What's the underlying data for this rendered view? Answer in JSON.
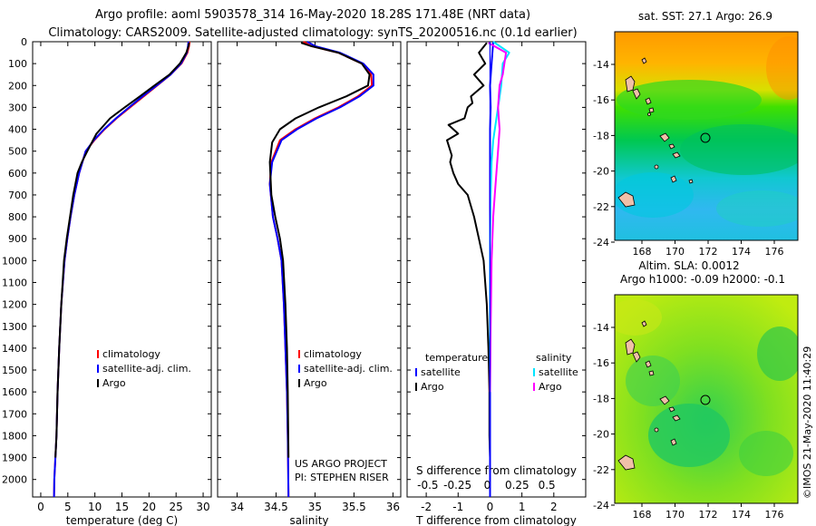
{
  "header": {
    "line1": "Argo profile: aoml 5903578_314 16-May-2020 18.28S 171.48E (NRT data)",
    "line2": "Climatology: CARS2009. Satellite-adjusted climatology: synTS_20200516.nc (0.1d earlier)"
  },
  "depth_ticks": [
    "0",
    "100",
    "200",
    "300",
    "400",
    "500",
    "600",
    "700",
    "800",
    "900",
    "1000",
    "1100",
    "1200",
    "1300",
    "1400",
    "1500",
    "1600",
    "1700",
    "1800",
    "1900",
    "2000"
  ],
  "colors": {
    "argo": "#000000",
    "climatology": "#ff0000",
    "satellite": "#0000ff",
    "sat_salinity": "#00e5ff",
    "argo_salinity_diff": "#ff00ff"
  },
  "chart_data": [
    {
      "type": "line",
      "title": "",
      "xlabel": "temperature (deg C)",
      "ylabel": "depth",
      "xlim": [
        -1.5,
        31.5
      ],
      "ylim": [
        2080,
        0
      ],
      "xticks": [
        "0",
        "5",
        "10",
        "15",
        "20",
        "25",
        "30"
      ],
      "legend": [
        {
          "label": "climatology",
          "color": "#ff0000"
        },
        {
          "label": "satellite-adj. clim.",
          "color": "#0000ff"
        },
        {
          "label": "Argo",
          "color": "#000000"
        }
      ],
      "series": [
        {
          "name": "climatology",
          "color": "#ff0000",
          "x": [
            27.5,
            27.4,
            27.1,
            26.0,
            24.0,
            21.5,
            19.0,
            16.5,
            14.0,
            11.8,
            9.9,
            8.3,
            7.1,
            6.2,
            5.5,
            4.9,
            4.4,
            3.8,
            3.4,
            3.1,
            2.9,
            2.7,
            2.6,
            2.5,
            2.45
          ],
          "y": [
            0,
            20,
            50,
            100,
            150,
            200,
            250,
            300,
            350,
            400,
            450,
            500,
            600,
            700,
            800,
            900,
            1000,
            1200,
            1400,
            1600,
            1800,
            1900,
            1950,
            2000,
            2080
          ]
        },
        {
          "name": "satellite-adj. clim.",
          "color": "#0000ff",
          "x": [
            27.3,
            27.2,
            27.0,
            25.9,
            24.0,
            21.4,
            18.8,
            16.3,
            13.9,
            11.7,
            9.8,
            8.3,
            7.1,
            6.2,
            5.5,
            4.9,
            4.4,
            3.8,
            3.4,
            3.1,
            2.9,
            2.7,
            2.6,
            2.5,
            2.45
          ],
          "y": [
            0,
            20,
            50,
            100,
            150,
            200,
            250,
            300,
            350,
            400,
            450,
            500,
            600,
            700,
            800,
            900,
            1000,
            1200,
            1400,
            1600,
            1800,
            1900,
            1950,
            2000,
            2080
          ]
        },
        {
          "name": "Argo",
          "color": "#000000",
          "x": [
            27.4,
            27.3,
            26.9,
            25.7,
            23.8,
            21.0,
            18.3,
            15.5,
            12.8,
            10.3,
            8.6,
            7.6,
            6.8,
            6.0,
            5.4,
            4.8,
            4.3,
            3.8,
            3.4,
            3.1,
            2.9,
            2.7
          ],
          "y": [
            5,
            20,
            50,
            100,
            150,
            200,
            250,
            300,
            350,
            420,
            500,
            550,
            600,
            700,
            800,
            900,
            1000,
            1200,
            1400,
            1600,
            1800,
            1900
          ]
        }
      ]
    },
    {
      "type": "line",
      "title": "",
      "xlabel": "salinity",
      "ylabel": "depth",
      "xlim": [
        33.75,
        36.1
      ],
      "ylim": [
        2080,
        0
      ],
      "xticks": [
        "34",
        "34.5",
        "35",
        "35.5",
        "36"
      ],
      "legend": [
        {
          "label": "climatology",
          "color": "#ff0000"
        },
        {
          "label": "satellite-adj. clim.",
          "color": "#0000ff"
        },
        {
          "label": "Argo",
          "color": "#000000"
        }
      ],
      "series": [
        {
          "name": "climatology",
          "color": "#ff0000",
          "x": [
            34.85,
            34.95,
            35.3,
            35.6,
            35.72,
            35.73,
            35.55,
            35.3,
            35.0,
            34.75,
            34.55,
            34.44,
            34.42,
            34.46,
            34.52,
            34.57,
            34.6,
            34.62,
            34.64,
            34.65,
            34.66
          ],
          "y": [
            0,
            20,
            50,
            100,
            150,
            200,
            250,
            300,
            350,
            400,
            450,
            550,
            650,
            800,
            900,
            1000,
            1200,
            1400,
            1600,
            1800,
            2080
          ]
        },
        {
          "name": "satellite-adj. clim.",
          "color": "#0000ff",
          "x": [
            34.9,
            35.0,
            35.32,
            35.62,
            35.75,
            35.75,
            35.57,
            35.32,
            35.02,
            34.77,
            34.57,
            34.45,
            34.42,
            34.46,
            34.52,
            34.57,
            34.6,
            34.62,
            34.64,
            34.65,
            34.66
          ],
          "y": [
            0,
            20,
            50,
            100,
            150,
            200,
            250,
            300,
            350,
            400,
            450,
            550,
            650,
            800,
            900,
            1000,
            1200,
            1400,
            1600,
            1800,
            2080
          ]
        },
        {
          "name": "Argo",
          "color": "#000000",
          "x": [
            34.82,
            34.95,
            35.3,
            35.6,
            35.7,
            35.68,
            35.4,
            35.05,
            34.75,
            34.55,
            34.45,
            34.42,
            34.44,
            34.49,
            34.55,
            34.59,
            34.62,
            34.64,
            34.65,
            34.66
          ],
          "y": [
            5,
            20,
            50,
            100,
            150,
            200,
            250,
            300,
            350,
            400,
            460,
            550,
            700,
            800,
            900,
            1000,
            1200,
            1400,
            1600,
            1900
          ]
        }
      ],
      "annotations": [
        "US ARGO PROJECT",
        "PI: STEPHEN RISER"
      ]
    },
    {
      "type": "line",
      "title": "",
      "xlabel": "T difference from climatology",
      "xlabel2": "S difference from climatology",
      "ylabel": "depth",
      "xlim": [
        -2.6,
        3.0
      ],
      "ylim": [
        2080,
        0
      ],
      "xticks": [
        "-2",
        "-1",
        "0",
        "1",
        "2"
      ],
      "xticks2": [
        "-0.5",
        "-0.25",
        "0",
        "0.25",
        "0.5"
      ],
      "legend": [
        {
          "label": "temperature",
          "color": "#000000"
        },
        {
          "label": "satellite",
          "color": "#0000ff"
        },
        {
          "label": "Argo",
          "color": "#000000"
        },
        {
          "label": "salinity",
          "color": "#000000"
        },
        {
          "label": "satellite",
          "color": "#00e5ff"
        },
        {
          "label": "Argo",
          "color": "#ff00ff"
        }
      ],
      "series": [
        {
          "name": "T Argo",
          "color": "#000000",
          "x": [
            -0.1,
            -0.35,
            -0.15,
            -0.5,
            -0.2,
            -0.6,
            -0.55,
            -0.7,
            -0.8,
            -1.3,
            -1.0,
            -1.35,
            -1.2,
            -1.25,
            -1.15,
            -1.0,
            -0.7,
            -0.5,
            -0.35,
            -0.2,
            -0.1,
            -0.05,
            -0.02,
            -0.02,
            0.0
          ],
          "y": [
            5,
            50,
            100,
            150,
            200,
            250,
            280,
            300,
            350,
            380,
            420,
            450,
            520,
            550,
            600,
            650,
            700,
            800,
            900,
            1000,
            1200,
            1400,
            1600,
            1800,
            1900
          ]
        },
        {
          "name": "T satellite",
          "color": "#0000ff",
          "x": [
            0.1,
            0.05,
            0.0,
            0.02,
            0.0,
            0.0,
            0.0,
            0.0,
            0.0,
            0.0,
            0.0
          ],
          "y": [
            0,
            100,
            200,
            300,
            400,
            600,
            800,
            1000,
            1400,
            1800,
            2080
          ]
        },
        {
          "name": "S satellite",
          "color": "#00e5ff",
          "x": [
            0.1,
            0.6,
            0.4,
            0.35,
            0.25,
            0.1,
            0.05,
            0.02,
            0.0,
            0.0,
            0.0
          ],
          "y": [
            0,
            50,
            100,
            200,
            300,
            450,
            550,
            700,
            900,
            1200,
            1500
          ]
        },
        {
          "name": "S Argo",
          "color": "#ff00ff",
          "x": [
            -0.05,
            0.5,
            0.45,
            0.4,
            0.3,
            0.25,
            0.3,
            0.25,
            0.2,
            0.15,
            0.1,
            0.05,
            0.02,
            0.0
          ],
          "y": [
            5,
            50,
            100,
            150,
            200,
            300,
            400,
            500,
            600,
            700,
            800,
            1000,
            1300,
            1600
          ]
        }
      ]
    }
  ],
  "maps": [
    {
      "title": "sat. SST: 27.1 Argo: 26.9",
      "xticks": [
        "168",
        "170",
        "172",
        "174",
        "176"
      ],
      "yticks": [
        "-14",
        "-16",
        "-18",
        "-20",
        "-22",
        "-24"
      ]
    },
    {
      "title": "Altim. SLA: 0.0012",
      "subtitle": "Argo h1000: -0.09 h2000: -0.1",
      "xticks": [
        "168",
        "170",
        "172",
        "174",
        "176"
      ],
      "yticks": [
        "-14",
        "-16",
        "-18",
        "-20",
        "-22",
        "-24"
      ]
    }
  ],
  "footer_credit": "©IMOS 21-May-2020 11:40:29"
}
